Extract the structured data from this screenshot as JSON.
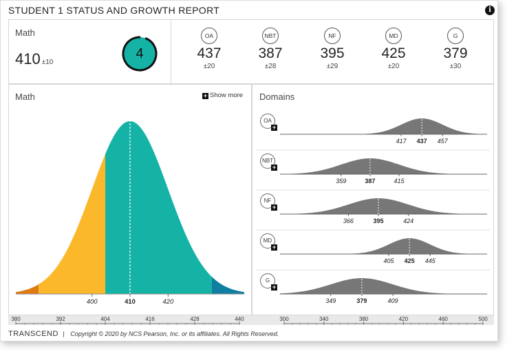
{
  "report": {
    "title": "STUDENT 1 STATUS AND GROWTH REPORT",
    "info_icon": "info-icon"
  },
  "summary": {
    "subject": "Math",
    "score": "410",
    "error": "±10",
    "level": "4",
    "level_fraction": 0.95
  },
  "domains_summary": [
    {
      "code": "OA",
      "score": "437",
      "error": "±20"
    },
    {
      "code": "NBT",
      "score": "387",
      "error": "±28"
    },
    {
      "code": "NF",
      "score": "395",
      "error": "±29"
    },
    {
      "code": "MD",
      "score": "425",
      "error": "±20"
    },
    {
      "code": "G",
      "score": "379",
      "error": "±30"
    }
  ],
  "left_panel": {
    "title": "Math",
    "show_more": "Show more"
  },
  "right_panel": {
    "title": "Domains"
  },
  "chart_data": [
    {
      "type": "area",
      "description_title": "Math",
      "distribution": {
        "mean": 410,
        "sd": 10
      },
      "band_boundaries": [
        386,
        403.5,
        431.5
      ],
      "band_colors": [
        "#e07b12",
        "#fbb82b",
        "#14b3a6",
        "#0f7ea0"
      ],
      "marker_labels": [
        "400",
        "410",
        "420"
      ],
      "x_axis": {
        "min": 380,
        "max": 440,
        "ticks": [
          "380",
          "392",
          "404",
          "416",
          "428",
          "440"
        ]
      }
    },
    {
      "type": "area",
      "title": "Domains",
      "rows": [
        {
          "code": "OA",
          "mean": 437,
          "low": "417",
          "high": "457",
          "center": "437",
          "sd": 20
        },
        {
          "code": "NBT",
          "mean": 387,
          "low": "359",
          "high": "415",
          "center": "387",
          "sd": 28
        },
        {
          "code": "NF",
          "mean": 395,
          "low": "366",
          "high": "424",
          "center": "395",
          "sd": 29
        },
        {
          "code": "MD",
          "mean": 425,
          "low": "405",
          "high": "445",
          "center": "425",
          "sd": 20
        },
        {
          "code": "G",
          "mean": 379,
          "low": "349",
          "high": "409",
          "center": "379",
          "sd": 30
        }
      ],
      "x_axis": {
        "min": 300,
        "max": 500,
        "ticks": [
          "300",
          "340",
          "380",
          "420",
          "460",
          "500"
        ]
      },
      "color": "#777777"
    }
  ],
  "footer": {
    "logo": "TRANSCEND",
    "separator": "|",
    "copyright": "Copyright © 2020 by NCS Pearson, Inc. or its affiliates. All Rights Reserved."
  }
}
